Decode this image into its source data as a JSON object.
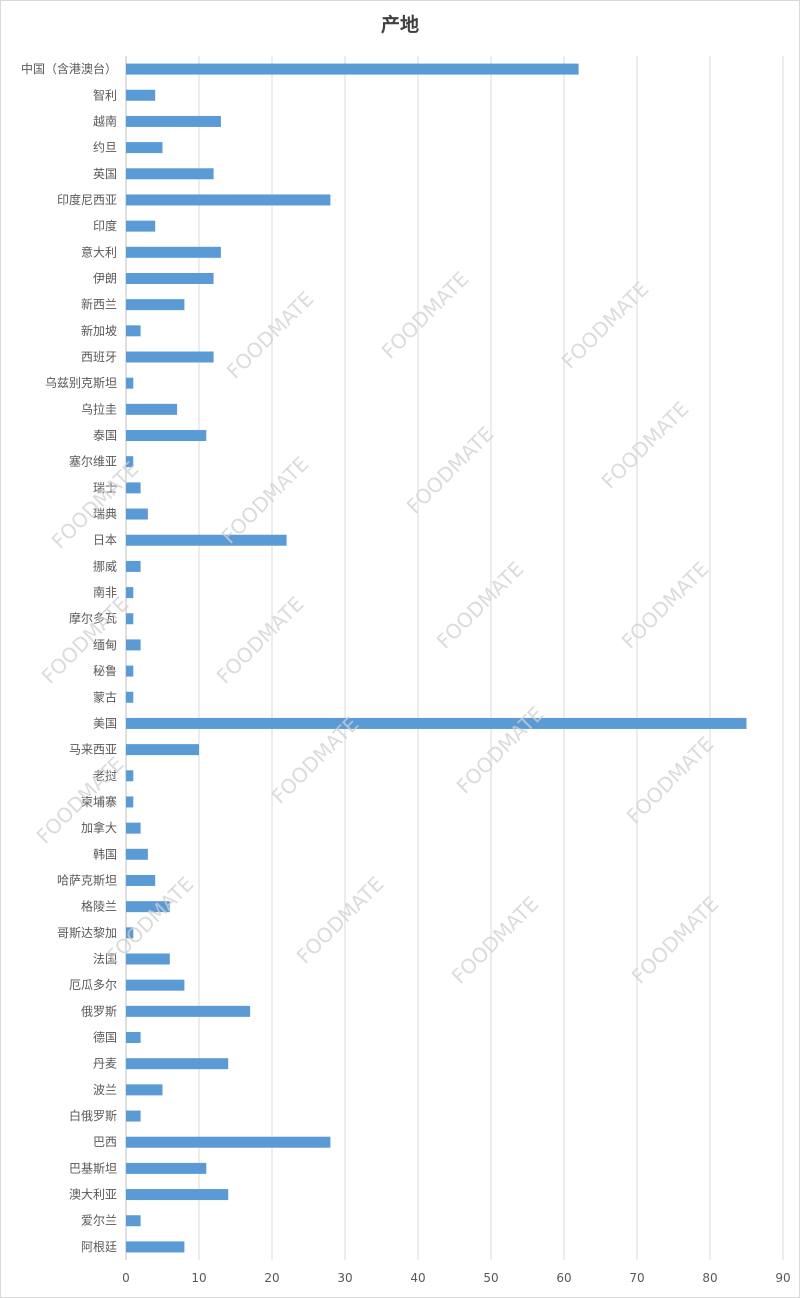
{
  "chart_data": {
    "type": "bar",
    "orientation": "horizontal",
    "title": "产地",
    "xlabel": "",
    "ylabel": "",
    "xlim": [
      0,
      90
    ],
    "x_ticks": [
      0,
      10,
      20,
      30,
      40,
      50,
      60,
      70,
      80,
      90
    ],
    "grid": "vertical",
    "bar_color": "#5b9bd5",
    "categories": [
      "中国（含港澳台）",
      "智利",
      "越南",
      "约旦",
      "英国",
      "印度尼西亚",
      "印度",
      "意大利",
      "伊朗",
      "新西兰",
      "新加坡",
      "西班牙",
      "乌兹别克斯坦",
      "乌拉圭",
      "泰国",
      "塞尔维亚",
      "瑞士",
      "瑞典",
      "日本",
      "挪威",
      "南非",
      "摩尔多瓦",
      "缅甸",
      "秘鲁",
      "蒙古",
      "美国",
      "马来西亚",
      "老挝",
      "柬埔寨",
      "加拿大",
      "韩国",
      "哈萨克斯坦",
      "格陵兰",
      "哥斯达黎加",
      "法国",
      "厄瓜多尔",
      "俄罗斯",
      "德国",
      "丹麦",
      "波兰",
      "白俄罗斯",
      "巴西",
      "巴基斯坦",
      "澳大利亚",
      "爱尔兰",
      "阿根廷"
    ],
    "values": [
      62,
      4,
      13,
      5,
      12,
      28,
      4,
      13,
      12,
      8,
      2,
      12,
      1,
      7,
      11,
      1,
      2,
      3,
      22,
      2,
      1,
      1,
      2,
      1,
      1,
      85,
      10,
      1,
      1,
      2,
      3,
      4,
      6,
      1,
      6,
      8,
      17,
      2,
      14,
      5,
      2,
      28,
      11,
      14,
      2,
      8
    ]
  },
  "watermark": "FOODMATE"
}
